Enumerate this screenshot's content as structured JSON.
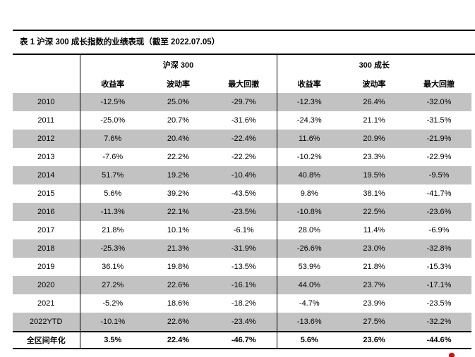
{
  "table": {
    "title": "表 1 沪深 300 成长指数的业绩表现（截至 2022.07.05）",
    "group_headers": [
      "沪深 300",
      "300 成长"
    ],
    "sub_headers": [
      "收益率",
      "波动率",
      "最大回撤"
    ],
    "rows": [
      {
        "label": "2010",
        "hs300": [
          "-12.5%",
          "25.0%",
          "-29.7%"
        ],
        "growth300": [
          "-12.3%",
          "26.4%",
          "-32.0%"
        ]
      },
      {
        "label": "2011",
        "hs300": [
          "-25.0%",
          "20.7%",
          "-31.6%"
        ],
        "growth300": [
          "-24.3%",
          "21.1%",
          "-31.5%"
        ]
      },
      {
        "label": "2012",
        "hs300": [
          "7.6%",
          "20.4%",
          "-22.4%"
        ],
        "growth300": [
          "11.6%",
          "20.9%",
          "-21.9%"
        ]
      },
      {
        "label": "2013",
        "hs300": [
          "-7.6%",
          "22.2%",
          "-22.2%"
        ],
        "growth300": [
          "-10.2%",
          "23.3%",
          "-22.9%"
        ]
      },
      {
        "label": "2014",
        "hs300": [
          "51.7%",
          "19.2%",
          "-10.4%"
        ],
        "growth300": [
          "40.8%",
          "19.5%",
          "-9.5%"
        ]
      },
      {
        "label": "2015",
        "hs300": [
          "5.6%",
          "39.2%",
          "-43.5%"
        ],
        "growth300": [
          "9.8%",
          "38.1%",
          "-41.7%"
        ]
      },
      {
        "label": "2016",
        "hs300": [
          "-11.3%",
          "22.1%",
          "-23.5%"
        ],
        "growth300": [
          "-10.8%",
          "22.5%",
          "-23.6%"
        ]
      },
      {
        "label": "2017",
        "hs300": [
          "21.8%",
          "10.1%",
          "-6.1%"
        ],
        "growth300": [
          "28.0%",
          "11.4%",
          "-6.9%"
        ]
      },
      {
        "label": "2018",
        "hs300": [
          "-25.3%",
          "21.3%",
          "-31.9%"
        ],
        "growth300": [
          "-26.6%",
          "23.0%",
          "-32.8%"
        ]
      },
      {
        "label": "2019",
        "hs300": [
          "36.1%",
          "19.8%",
          "-13.5%"
        ],
        "growth300": [
          "53.9%",
          "21.8%",
          "-15.3%"
        ]
      },
      {
        "label": "2020",
        "hs300": [
          "27.2%",
          "22.6%",
          "-16.1%"
        ],
        "growth300": [
          "44.0%",
          "23.7%",
          "-17.1%"
        ]
      },
      {
        "label": "2021",
        "hs300": [
          "-5.2%",
          "18.6%",
          "-18.2%"
        ],
        "growth300": [
          "-4.7%",
          "23.9%",
          "-23.5%"
        ]
      },
      {
        "label": "2022YTD",
        "hs300": [
          "-10.1%",
          "22.6%",
          "-23.4%"
        ],
        "growth300": [
          "-13.6%",
          "27.5%",
          "-32.2%"
        ]
      }
    ],
    "total_row": {
      "label": "全区间年化",
      "hs300": [
        "3.5%",
        "22.4%",
        "-46.7%"
      ],
      "growth300": [
        "5.6%",
        "23.6%",
        "-44.6%"
      ]
    }
  },
  "colors": {
    "stripe": "#c2c2c2",
    "rule": "#000000",
    "text": "#000000",
    "red_mark": "#cc1111"
  }
}
